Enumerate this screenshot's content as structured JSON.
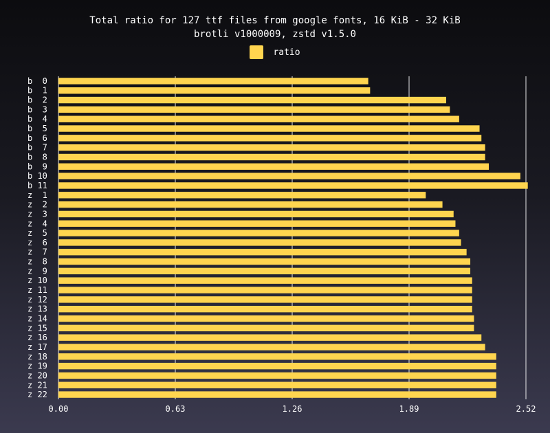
{
  "chart_data": {
    "type": "bar",
    "orientation": "horizontal",
    "title": "Total ratio for 127 ttf files from google fonts, 16 KiB - 32 KiB",
    "subtitle": "brotli v1000009, zstd v1.5.0",
    "legend": {
      "position": "top",
      "entries": [
        "ratio"
      ]
    },
    "xlim": [
      0,
      2.52
    ],
    "xticks": [
      "0.00",
      "0.63",
      "1.26",
      "1.89",
      "2.52"
    ],
    "grid": true,
    "categories": [
      "b  0",
      "b  1",
      "b  2",
      "b  3",
      "b  4",
      "b  5",
      "b  6",
      "b  7",
      "b  8",
      "b  9",
      "b 10",
      "b 11",
      "z  1",
      "z  2",
      "z  3",
      "z  4",
      "z  5",
      "z  6",
      "z  7",
      "z  8",
      "z  9",
      "z 10",
      "z 11",
      "z 12",
      "z 13",
      "z 14",
      "z 15",
      "z 16",
      "z 17",
      "z 18",
      "z 19",
      "z 20",
      "z 21",
      "z 22"
    ],
    "series": [
      {
        "name": "ratio",
        "color": "#ffd54f",
        "values": [
          1.67,
          1.68,
          2.09,
          2.11,
          2.16,
          2.27,
          2.28,
          2.3,
          2.3,
          2.32,
          2.49,
          2.53,
          1.98,
          2.07,
          2.13,
          2.14,
          2.16,
          2.17,
          2.2,
          2.22,
          2.22,
          2.23,
          2.23,
          2.23,
          2.23,
          2.24,
          2.24,
          2.28,
          2.3,
          2.36,
          2.36,
          2.36,
          2.36,
          2.36
        ]
      }
    ]
  }
}
